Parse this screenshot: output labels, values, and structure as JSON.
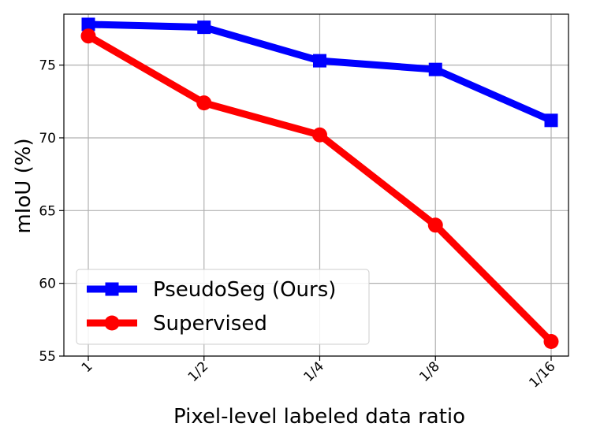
{
  "chart_data": {
    "type": "line",
    "title": "",
    "xlabel": "Pixel-level labeled data ratio",
    "ylabel": "mIoU (%)",
    "x_scale": "log2",
    "categories": [
      "1",
      "1/2",
      "1/4",
      "1/8",
      "1/16"
    ],
    "x": [
      1,
      0.5,
      0.25,
      0.125,
      0.0625
    ],
    "ylim": [
      55,
      78.5
    ],
    "yticks": [
      55,
      60,
      65,
      70,
      75
    ],
    "grid": true,
    "legend_position": "lower-left",
    "series": [
      {
        "name": "PseudoSeg (Ours)",
        "color": "#0000ff",
        "marker": "square",
        "values": [
          77.8,
          77.6,
          75.3,
          74.7,
          71.2
        ]
      },
      {
        "name": "Supervised",
        "color": "#ff0000",
        "marker": "circle",
        "values": [
          77.0,
          72.4,
          70.2,
          64.0,
          56.0
        ]
      }
    ]
  }
}
